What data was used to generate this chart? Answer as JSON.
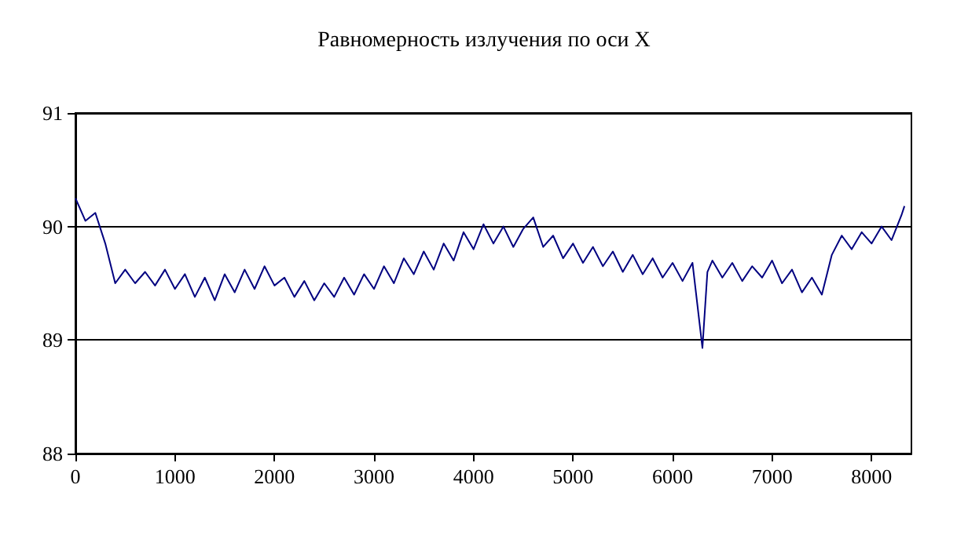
{
  "chart_data": {
    "type": "line",
    "title": "Равномерность излучения по оси X",
    "x": [
      0,
      100,
      200,
      300,
      400,
      500,
      600,
      700,
      800,
      900,
      1000,
      1100,
      1200,
      1300,
      1400,
      1500,
      1600,
      1700,
      1800,
      1900,
      2000,
      2100,
      2200,
      2300,
      2400,
      2500,
      2600,
      2700,
      2800,
      2900,
      3000,
      3100,
      3200,
      3300,
      3400,
      3500,
      3600,
      3700,
      3800,
      3900,
      4000,
      4100,
      4200,
      4300,
      4400,
      4500,
      4600,
      4700,
      4800,
      4900,
      5000,
      5100,
      5200,
      5300,
      5400,
      5500,
      5600,
      5700,
      5800,
      5900,
      6000,
      6100,
      6200,
      6300,
      6350,
      6400,
      6500,
      6600,
      6700,
      6800,
      6900,
      7000,
      7100,
      7200,
      7300,
      7400,
      7500,
      7600,
      7700,
      7800,
      7900,
      8000,
      8100,
      8200,
      8300,
      8330
    ],
    "series": [
      {
        "color": "#000080",
        "values": [
          90.25,
          90.05,
          90.12,
          89.85,
          89.5,
          89.62,
          89.5,
          89.6,
          89.48,
          89.62,
          89.45,
          89.58,
          89.38,
          89.55,
          89.35,
          89.58,
          89.42,
          89.62,
          89.45,
          89.65,
          89.48,
          89.55,
          89.38,
          89.52,
          89.35,
          89.5,
          89.38,
          89.55,
          89.4,
          89.58,
          89.45,
          89.65,
          89.5,
          89.72,
          89.58,
          89.78,
          89.62,
          89.85,
          89.7,
          89.95,
          89.8,
          90.02,
          89.85,
          90.0,
          89.82,
          89.98,
          90.08,
          89.82,
          89.92,
          89.72,
          89.85,
          89.68,
          89.82,
          89.65,
          89.78,
          89.6,
          89.75,
          89.58,
          89.72,
          89.55,
          89.68,
          89.52,
          89.68,
          88.93,
          89.6,
          89.7,
          89.55,
          89.68,
          89.52,
          89.65,
          89.55,
          89.7,
          89.5,
          89.62,
          89.42,
          89.55,
          89.4,
          89.75,
          89.92,
          89.8,
          89.95,
          89.85,
          90.0,
          89.88,
          90.1,
          90.18
        ]
      }
    ],
    "xlim": [
      0,
      8400
    ],
    "xticks": [
      0,
      1000,
      2000,
      3000,
      4000,
      5000,
      6000,
      7000,
      8000
    ],
    "ylim": [
      88,
      91
    ],
    "yticks": [
      88,
      89,
      90,
      91
    ],
    "grid": "y",
    "marker": "none",
    "line_style": "solid"
  }
}
